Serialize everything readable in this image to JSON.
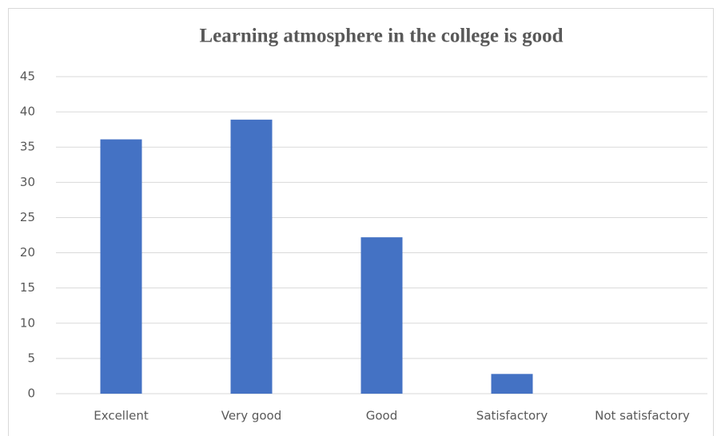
{
  "chart_data": {
    "type": "bar",
    "title": "Learning atmosphere in the college is good",
    "categories": [
      "Excellent",
      "Very good",
      "Good",
      "Satisfactory",
      "Not satisfactory"
    ],
    "values": [
      36.1,
      38.9,
      22.2,
      2.8,
      0
    ],
    "color": "#4472c4",
    "ylim": [
      0,
      45
    ],
    "yticks": [
      0,
      5,
      10,
      15,
      20,
      25,
      30,
      35,
      40,
      45
    ],
    "grid": true
  }
}
